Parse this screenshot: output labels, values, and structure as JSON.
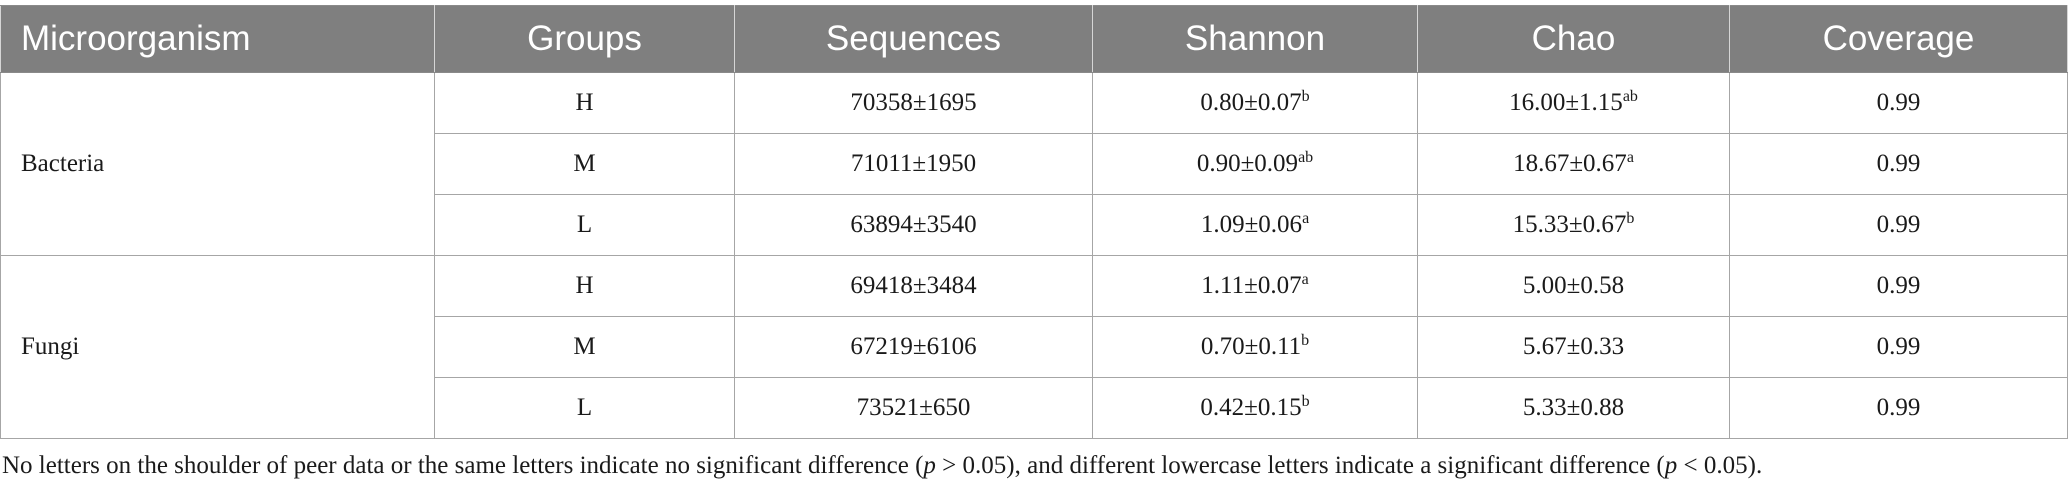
{
  "table": {
    "headers": [
      "Microorganism",
      "Groups",
      "Sequences",
      "Shannon",
      "Chao",
      "Coverage"
    ],
    "sections": [
      {
        "name": "Bacteria",
        "rows": [
          {
            "group": "H",
            "sequences": "70358±1695",
            "shannon": "0.80±0.07",
            "shannon_sup": "b",
            "chao": "16.00±1.15",
            "chao_sup": "ab",
            "coverage": "0.99"
          },
          {
            "group": "M",
            "sequences": "71011±1950",
            "shannon": "0.90±0.09",
            "shannon_sup": "ab",
            "chao": "18.67±0.67",
            "chao_sup": "a",
            "coverage": "0.99"
          },
          {
            "group": "L",
            "sequences": "63894±3540",
            "shannon": "1.09±0.06",
            "shannon_sup": "a",
            "chao": "15.33±0.67",
            "chao_sup": "b",
            "coverage": "0.99"
          }
        ]
      },
      {
        "name": "Fungi",
        "rows": [
          {
            "group": "H",
            "sequences": "69418±3484",
            "shannon": "1.11±0.07",
            "shannon_sup": "a",
            "chao": "5.00±0.58",
            "chao_sup": "",
            "coverage": "0.99"
          },
          {
            "group": "M",
            "sequences": "67219±6106",
            "shannon": "0.70±0.11",
            "shannon_sup": "b",
            "chao": "5.67±0.33",
            "chao_sup": "",
            "coverage": "0.99"
          },
          {
            "group": "L",
            "sequences": "73521±650",
            "shannon": "0.42±0.15",
            "shannon_sup": "b",
            "chao": "5.33±0.88",
            "chao_sup": "",
            "coverage": "0.99"
          }
        ]
      }
    ]
  },
  "footnote": {
    "part1": "No letters on the shoulder of peer data or the same letters indicate no significant difference (",
    "p1_var": "p",
    "part2": " > 0.05), and different lowercase letters indicate a significant difference (",
    "p2_var": "p",
    "part3": " < 0.05)."
  }
}
